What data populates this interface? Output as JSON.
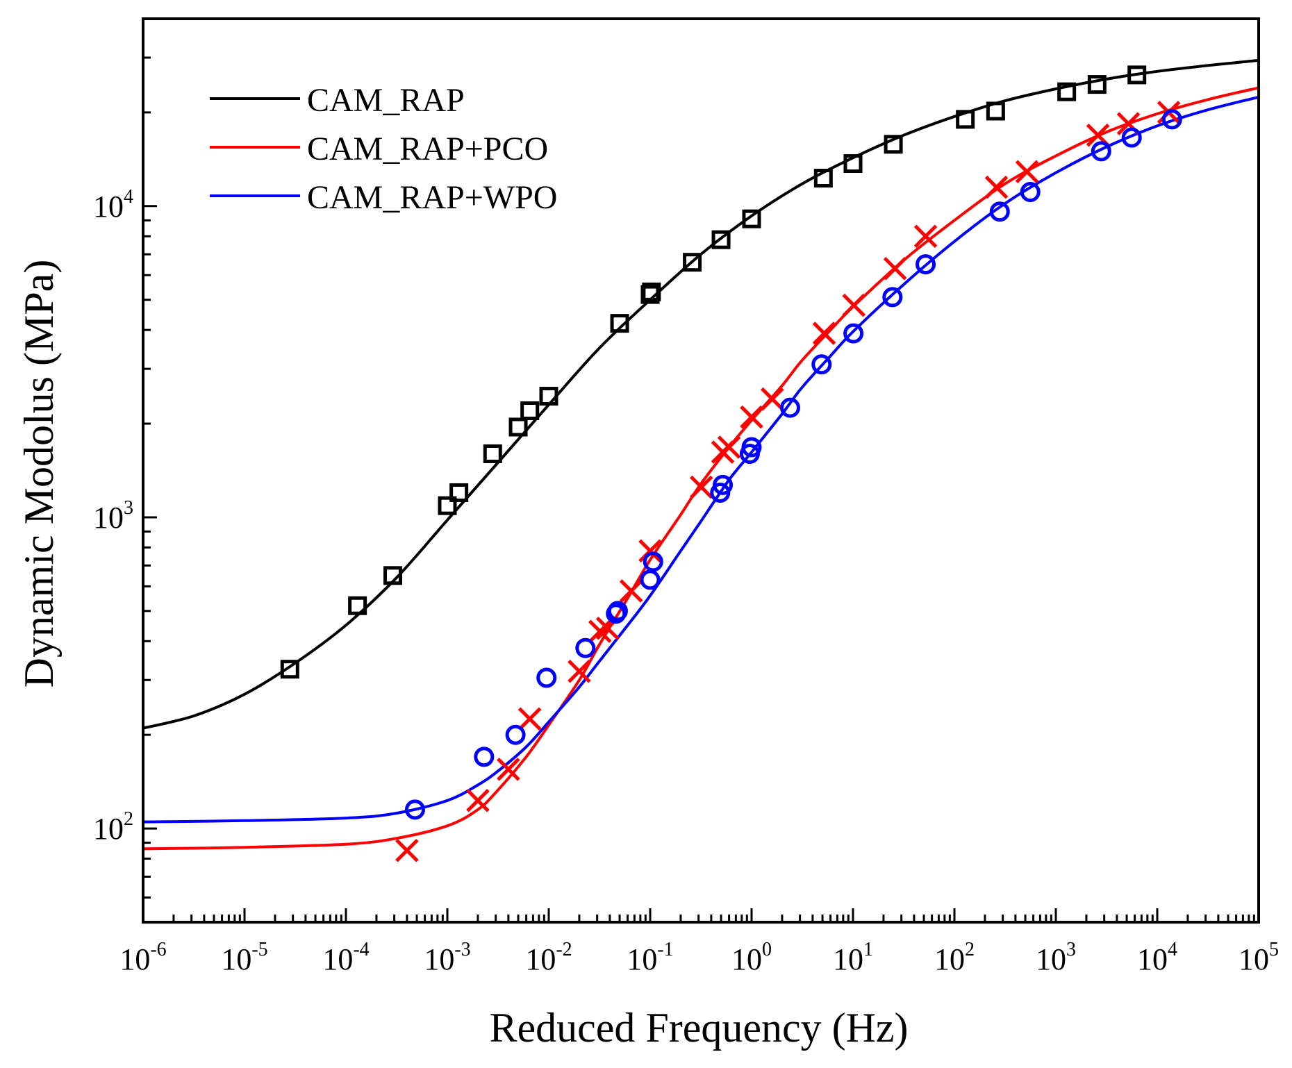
{
  "chart_data": {
    "type": "scatter",
    "xlabel": "Reduced Frequency (Hz)",
    "ylabel": "Dynamic Modolus (MPa)",
    "xscale": "log",
    "yscale": "log",
    "xlim": [
      1e-06,
      100000.0
    ],
    "ylim": [
      50,
      40000
    ],
    "grid": false,
    "legend_position": "top-left",
    "x_tick_labels": [
      {
        "base": "10",
        "exp": "-6",
        "value": 1e-06
      },
      {
        "base": "10",
        "exp": "-5",
        "value": 1e-05
      },
      {
        "base": "10",
        "exp": "-4",
        "value": 0.0001
      },
      {
        "base": "10",
        "exp": "-3",
        "value": 0.001
      },
      {
        "base": "10",
        "exp": "-2",
        "value": 0.01
      },
      {
        "base": "10",
        "exp": "-1",
        "value": 0.1
      },
      {
        "base": "10",
        "exp": "0",
        "value": 1
      },
      {
        "base": "10",
        "exp": "1",
        "value": 10
      },
      {
        "base": "10",
        "exp": "2",
        "value": 100
      },
      {
        "base": "10",
        "exp": "3",
        "value": 1000
      },
      {
        "base": "10",
        "exp": "4",
        "value": 10000
      },
      {
        "base": "10",
        "exp": "5",
        "value": 100000
      }
    ],
    "y_tick_labels": [
      {
        "base": "10",
        "exp": "2",
        "value": 100
      },
      {
        "base": "10",
        "exp": "3",
        "value": 1000
      },
      {
        "base": "10",
        "exp": "4",
        "value": 10000
      }
    ],
    "series": [
      {
        "name": "CAM_RAP",
        "color": "#000000",
        "marker": "square",
        "fit_x": [
          1e-06,
          3.16e-06,
          1e-05,
          3.16e-05,
          0.0001,
          0.000316,
          0.001,
          0.00316,
          0.01,
          0.0316,
          0.1,
          0.316,
          1,
          3.16,
          10,
          31.6,
          100,
          316,
          1000,
          3160,
          10000,
          31600,
          100000
        ],
        "fit_y": [
          210,
          230,
          270,
          340,
          450,
          640,
          980,
          1500,
          2300,
          3500,
          5000,
          7000,
          9300,
          11800,
          14300,
          16900,
          19400,
          21800,
          23800,
          25600,
          27100,
          28300,
          29400
        ],
        "points": [
          {
            "x": 2.8e-05,
            "y": 325
          },
          {
            "x": 0.00013,
            "y": 520
          },
          {
            "x": 0.00029,
            "y": 650
          },
          {
            "x": 0.001,
            "y": 1090
          },
          {
            "x": 0.0013,
            "y": 1200
          },
          {
            "x": 0.0028,
            "y": 1600
          },
          {
            "x": 0.005,
            "y": 1950
          },
          {
            "x": 0.0065,
            "y": 2200
          },
          {
            "x": 0.01,
            "y": 2450
          },
          {
            "x": 0.05,
            "y": 4200
          },
          {
            "x": 0.1,
            "y": 5200
          },
          {
            "x": 0.103,
            "y": 5300
          },
          {
            "x": 0.26,
            "y": 6600
          },
          {
            "x": 0.5,
            "y": 7800
          },
          {
            "x": 1.0,
            "y": 9100
          },
          {
            "x": 5.1,
            "y": 12300
          },
          {
            "x": 10.0,
            "y": 13700
          },
          {
            "x": 25.0,
            "y": 15800
          },
          {
            "x": 128,
            "y": 19000
          },
          {
            "x": 255,
            "y": 20200
          },
          {
            "x": 1280,
            "y": 23300
          },
          {
            "x": 2550,
            "y": 24600
          },
          {
            "x": 6300,
            "y": 26400
          }
        ]
      },
      {
        "name": "CAM_RAP+PCO",
        "color": "#ff0000",
        "marker": "x",
        "fit_x": [
          1e-06,
          1e-05,
          0.0001,
          0.000316,
          0.001,
          0.002,
          0.00316,
          0.006,
          0.01,
          0.02,
          0.0316,
          0.06,
          0.1,
          0.2,
          0.316,
          0.6,
          1,
          2,
          3.16,
          6,
          10,
          31.6,
          100,
          316,
          1000,
          3160,
          10000,
          31600,
          100000
        ],
        "fit_y": [
          86,
          87,
          89,
          93,
          102,
          115,
          133,
          170,
          215,
          300,
          390,
          550,
          730,
          1020,
          1280,
          1680,
          2050,
          2650,
          3200,
          4000,
          4750,
          6700,
          9000,
          11800,
          14500,
          17300,
          19800,
          22000,
          24000
        ],
        "points": [
          {
            "x": 0.0004,
            "y": 85
          },
          {
            "x": 0.002,
            "y": 123
          },
          {
            "x": 0.004,
            "y": 155
          },
          {
            "x": 0.0065,
            "y": 225
          },
          {
            "x": 0.02,
            "y": 320
          },
          {
            "x": 0.032,
            "y": 430
          },
          {
            "x": 0.038,
            "y": 440
          },
          {
            "x": 0.065,
            "y": 580
          },
          {
            "x": 0.1,
            "y": 780
          },
          {
            "x": 0.32,
            "y": 1250
          },
          {
            "x": 0.52,
            "y": 1620
          },
          {
            "x": 0.6,
            "y": 1680
          },
          {
            "x": 1.0,
            "y": 2100
          },
          {
            "x": 1.6,
            "y": 2400
          },
          {
            "x": 5.2,
            "y": 3900
          },
          {
            "x": 10.2,
            "y": 4800
          },
          {
            "x": 26,
            "y": 6300
          },
          {
            "x": 52,
            "y": 8000
          },
          {
            "x": 260,
            "y": 11500
          },
          {
            "x": 520,
            "y": 12900
          },
          {
            "x": 2600,
            "y": 16900
          },
          {
            "x": 5200,
            "y": 18400
          },
          {
            "x": 13000,
            "y": 20000
          }
        ]
      },
      {
        "name": "CAM_RAP+WPO",
        "color": "#0000ff",
        "marker": "circle",
        "fit_x": [
          1e-06,
          1e-05,
          0.0001,
          0.000316,
          0.001,
          0.002,
          0.00316,
          0.006,
          0.01,
          0.02,
          0.0316,
          0.06,
          0.1,
          0.2,
          0.316,
          0.6,
          1,
          2,
          3.16,
          6,
          10,
          31.6,
          100,
          316,
          1000,
          3160,
          10000,
          31600,
          100000
        ],
        "fit_y": [
          105,
          106,
          108,
          112,
          123,
          138,
          153,
          183,
          220,
          285,
          345,
          450,
          560,
          780,
          970,
          1320,
          1620,
          2150,
          2620,
          3300,
          3950,
          5600,
          7700,
          10200,
          12800,
          15500,
          18100,
          20400,
          22400
        ],
        "points": [
          {
            "x": 0.00048,
            "y": 115
          },
          {
            "x": 0.0023,
            "y": 170
          },
          {
            "x": 0.0047,
            "y": 200
          },
          {
            "x": 0.0095,
            "y": 305
          },
          {
            "x": 0.023,
            "y": 380
          },
          {
            "x": 0.046,
            "y": 490
          },
          {
            "x": 0.048,
            "y": 500
          },
          {
            "x": 0.1,
            "y": 630
          },
          {
            "x": 0.107,
            "y": 720
          },
          {
            "x": 0.49,
            "y": 1200
          },
          {
            "x": 0.52,
            "y": 1270
          },
          {
            "x": 0.96,
            "y": 1600
          },
          {
            "x": 1.0,
            "y": 1680
          },
          {
            "x": 2.4,
            "y": 2250
          },
          {
            "x": 4.9,
            "y": 3100
          },
          {
            "x": 10.1,
            "y": 3900
          },
          {
            "x": 24.5,
            "y": 5100
          },
          {
            "x": 52,
            "y": 6500
          },
          {
            "x": 280,
            "y": 9600
          },
          {
            "x": 560,
            "y": 11100
          },
          {
            "x": 2800,
            "y": 15000
          },
          {
            "x": 5600,
            "y": 16600
          },
          {
            "x": 14000,
            "y": 19000
          }
        ]
      }
    ]
  }
}
